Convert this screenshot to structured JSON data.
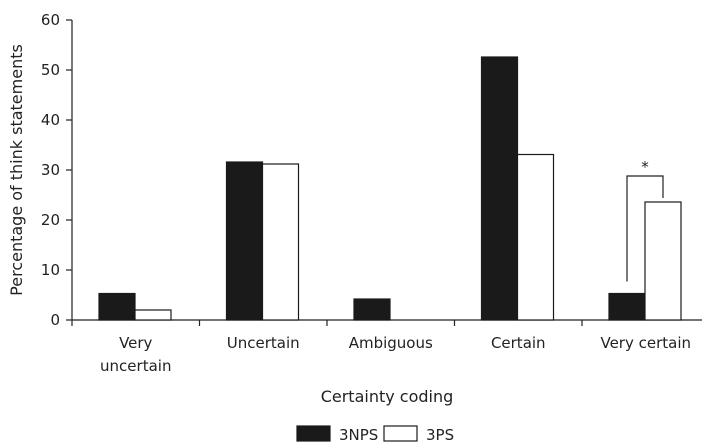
{
  "chart_data": {
    "type": "bar",
    "title": "",
    "xlabel": "Certainty coding",
    "ylabel": "Percentage of think statements",
    "ylim": [
      0,
      60
    ],
    "yticks": [
      0,
      10,
      20,
      30,
      40,
      50,
      60
    ],
    "categories": [
      [
        "Very",
        "uncertain"
      ],
      [
        "Uncertain"
      ],
      [
        "Ambiguous"
      ],
      [
        "Certain"
      ],
      [
        "Very certain"
      ]
    ],
    "series": [
      {
        "name": "3NPS",
        "color": "#1a1a1a",
        "values": [
          5.3,
          31.6,
          4.2,
          52.6,
          5.3
        ]
      },
      {
        "name": "3PS",
        "color": "#ffffff",
        "values": [
          2.0,
          31.2,
          0,
          33.1,
          23.6
        ]
      }
    ],
    "annotations": [
      {
        "type": "significance",
        "text": "*",
        "category_index": 4
      }
    ],
    "legend": {
      "position": "bottom-center"
    },
    "grid": false
  }
}
